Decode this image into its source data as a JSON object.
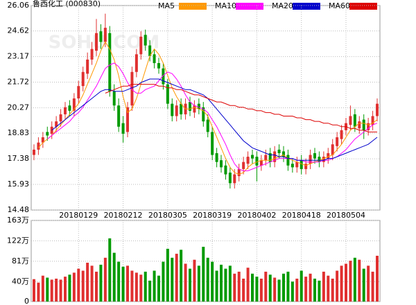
{
  "chart_data": {
    "type": "candlestick",
    "title": "鲁西化工 (000830)",
    "watermark": "SOHU.COM",
    "categories": [
      null,
      null,
      null,
      null,
      null,
      null,
      null,
      null,
      null,
      null,
      "20180129",
      null,
      null,
      null,
      null,
      null,
      null,
      null,
      null,
      null,
      "20180212",
      null,
      null,
      null,
      null,
      null,
      null,
      null,
      null,
      null,
      "20180305",
      null,
      null,
      null,
      null,
      null,
      null,
      null,
      null,
      null,
      "20180319",
      null,
      null,
      null,
      null,
      null,
      null,
      null,
      null,
      null,
      "20180402",
      null,
      null,
      null,
      null,
      null,
      null,
      null,
      null,
      null,
      "20180418",
      null,
      null,
      null,
      null,
      null,
      null,
      null,
      null,
      null,
      "20180504",
      null,
      null,
      null,
      null,
      null,
      null,
      null
    ],
    "ohlc": [
      [
        17.6,
        18.2,
        17.3,
        17.9
      ],
      [
        17.9,
        18.6,
        17.6,
        18.3
      ],
      [
        18.3,
        18.9,
        18.0,
        18.6
      ],
      [
        18.9,
        19.2,
        18.4,
        18.7
      ],
      [
        18.8,
        19.5,
        18.5,
        19.2
      ],
      [
        19.2,
        19.8,
        18.9,
        19.5
      ],
      [
        19.5,
        20.2,
        19.2,
        19.9
      ],
      [
        19.9,
        20.6,
        19.6,
        20.3
      ],
      [
        20.4,
        20.7,
        19.8,
        20.1
      ],
      [
        20.1,
        21.1,
        19.8,
        20.8
      ],
      [
        20.8,
        21.8,
        20.5,
        21.5
      ],
      [
        21.5,
        22.6,
        21.2,
        22.3
      ],
      [
        22.2,
        23.4,
        21.9,
        23.0
      ],
      [
        23.0,
        24.0,
        22.7,
        23.6
      ],
      [
        23.5,
        25.3,
        23.2,
        24.5
      ],
      [
        24.6,
        25.0,
        23.6,
        24.0
      ],
      [
        24.0,
        25.6,
        23.7,
        24.8
      ],
      [
        24.5,
        24.9,
        20.9,
        21.2
      ],
      [
        21.2,
        21.6,
        20.1,
        20.4
      ],
      [
        20.4,
        20.8,
        18.9,
        19.2
      ],
      [
        19.4,
        19.8,
        18.3,
        18.8
      ],
      [
        18.9,
        20.6,
        18.6,
        20.3
      ],
      [
        20.4,
        22.6,
        20.1,
        22.3
      ],
      [
        22.3,
        23.6,
        22.0,
        23.3
      ],
      [
        23.3,
        24.6,
        23.0,
        24.3
      ],
      [
        24.4,
        24.7,
        23.5,
        23.8
      ],
      [
        23.8,
        24.1,
        22.9,
        23.2
      ],
      [
        23.3,
        23.6,
        22.5,
        22.8
      ],
      [
        22.8,
        23.1,
        22.2,
        22.5
      ],
      [
        22.5,
        22.8,
        21.3,
        21.6
      ],
      [
        21.6,
        21.9,
        20.2,
        20.5
      ],
      [
        20.5,
        20.8,
        19.5,
        19.8
      ],
      [
        19.8,
        20.7,
        19.5,
        20.4
      ],
      [
        20.5,
        20.8,
        19.6,
        19.9
      ],
      [
        19.9,
        20.8,
        19.6,
        20.5
      ],
      [
        20.6,
        20.9,
        19.8,
        20.1
      ],
      [
        20.0,
        20.7,
        19.7,
        20.4
      ],
      [
        20.5,
        20.8,
        19.9,
        20.2
      ],
      [
        20.3,
        20.6,
        19.2,
        19.5
      ],
      [
        19.6,
        19.9,
        18.6,
        18.9
      ],
      [
        18.9,
        19.2,
        17.3,
        17.6
      ],
      [
        17.7,
        18.0,
        16.9,
        17.2
      ],
      [
        17.3,
        17.6,
        16.6,
        16.9
      ],
      [
        17.0,
        17.3,
        16.2,
        16.5
      ],
      [
        16.6,
        16.9,
        15.7,
        16.0
      ],
      [
        16.0,
        16.8,
        15.7,
        16.5
      ],
      [
        16.4,
        17.1,
        16.1,
        16.8
      ],
      [
        16.8,
        17.5,
        16.5,
        17.2
      ],
      [
        17.1,
        17.8,
        16.8,
        17.5
      ],
      [
        17.6,
        17.9,
        17.1,
        17.4
      ],
      [
        17.5,
        17.8,
        16.1,
        17.0
      ],
      [
        17.0,
        17.6,
        16.7,
        17.3
      ],
      [
        17.3,
        17.9,
        17.0,
        17.6
      ],
      [
        17.7,
        18.0,
        16.9,
        17.2
      ],
      [
        17.2,
        18.1,
        16.9,
        17.8
      ],
      [
        17.9,
        18.2,
        17.4,
        17.7
      ],
      [
        17.8,
        18.1,
        17.2,
        17.5
      ],
      [
        17.6,
        17.9,
        16.7,
        17.0
      ],
      [
        17.1,
        17.4,
        16.6,
        16.9
      ],
      [
        16.9,
        17.5,
        16.6,
        17.2
      ],
      [
        17.3,
        17.6,
        16.5,
        16.8
      ],
      [
        16.8,
        17.4,
        16.5,
        17.1
      ],
      [
        17.1,
        17.9,
        16.8,
        17.6
      ],
      [
        17.7,
        18.0,
        17.1,
        17.4
      ],
      [
        17.5,
        17.8,
        16.9,
        17.2
      ],
      [
        17.2,
        17.8,
        16.9,
        17.5
      ],
      [
        17.4,
        18.0,
        17.1,
        17.7
      ],
      [
        17.6,
        18.5,
        17.3,
        18.2
      ],
      [
        18.1,
        18.9,
        17.8,
        18.6
      ],
      [
        18.5,
        19.3,
        18.2,
        19.0
      ],
      [
        19.0,
        19.7,
        18.7,
        19.4
      ],
      [
        19.3,
        20.4,
        19.0,
        19.8
      ],
      [
        19.9,
        20.2,
        18.9,
        19.2
      ],
      [
        19.1,
        19.8,
        18.8,
        19.5
      ],
      [
        19.6,
        19.9,
        18.5,
        19.0
      ],
      [
        19.0,
        19.7,
        18.7,
        19.4
      ],
      [
        19.3,
        20.1,
        19.0,
        19.8
      ],
      [
        19.8,
        20.8,
        19.5,
        20.5
      ]
    ],
    "volume": [
      45,
      38,
      52,
      48,
      44,
      46,
      44,
      50,
      54,
      58,
      66,
      62,
      78,
      72,
      60,
      74,
      88,
      127,
      98,
      80,
      70,
      72,
      62,
      58,
      54,
      60,
      42,
      62,
      52,
      80,
      106,
      88,
      96,
      104,
      76,
      66,
      84,
      72,
      110,
      88,
      80,
      62,
      74,
      66,
      72,
      56,
      60,
      46,
      68,
      56,
      50,
      46,
      60,
      54,
      48,
      44,
      56,
      60,
      40,
      46,
      62,
      50,
      56,
      46,
      42,
      60,
      52,
      46,
      62,
      72,
      76,
      82,
      88,
      84,
      66,
      72,
      60,
      92
    ],
    "series": [
      {
        "name": "MA5",
        "color": "#ff9900",
        "values": [
          null,
          18.0,
          18.3,
          18.5,
          18.7,
          19.0,
          19.3,
          19.6,
          19.9,
          20.2,
          20.5,
          21.0,
          21.6,
          22.2,
          22.8,
          23.5,
          24.0,
          23.6,
          23.0,
          22.1,
          20.9,
          20.0,
          20.2,
          20.8,
          21.6,
          22.4,
          23.2,
          23.6,
          23.3,
          22.8,
          22.1,
          21.4,
          20.9,
          20.5,
          20.2,
          20.2,
          20.3,
          20.2,
          20.1,
          19.8,
          19.2,
          18.6,
          18.0,
          17.4,
          16.9,
          16.6,
          16.5,
          16.6,
          16.9,
          17.1,
          17.2,
          17.3,
          17.3,
          17.3,
          17.4,
          17.5,
          17.6,
          17.4,
          17.3,
          17.2,
          17.1,
          17.0,
          17.1,
          17.2,
          17.3,
          17.4,
          17.5,
          17.6,
          17.9,
          18.2,
          18.6,
          19.0,
          19.2,
          19.4,
          19.4,
          19.3,
          19.4,
          19.6
        ]
      },
      {
        "name": "MA10",
        "color": "#ff00ff",
        "values": [
          null,
          null,
          null,
          18.5,
          18.7,
          18.9,
          19.1,
          19.3,
          19.5,
          19.8,
          20.0,
          20.3,
          20.7,
          21.1,
          21.5,
          22.0,
          22.5,
          22.7,
          22.8,
          22.6,
          22.2,
          21.7,
          21.3,
          21.1,
          21.1,
          21.3,
          21.4,
          21.5,
          21.8,
          22.1,
          22.3,
          22.2,
          21.9,
          21.5,
          21.0,
          20.6,
          20.4,
          20.3,
          20.2,
          20.0,
          19.6,
          19.2,
          18.7,
          18.2,
          17.6,
          17.1,
          16.8,
          16.7,
          16.7,
          16.8,
          16.9,
          17.0,
          17.1,
          17.2,
          17.3,
          17.4,
          17.4,
          17.4,
          17.4,
          17.3,
          17.3,
          17.2,
          17.2,
          17.2,
          17.2,
          17.3,
          17.3,
          17.4,
          17.5,
          17.7,
          17.9,
          18.2,
          18.5,
          18.7,
          18.9,
          19.1,
          19.3,
          19.4
        ]
      },
      {
        "name": "MA20",
        "color": "#0000cc",
        "values": [
          null,
          null,
          null,
          null,
          19.0,
          19.2,
          19.4,
          19.6,
          19.8,
          20.0,
          20.2,
          20.4,
          20.6,
          20.8,
          21.0,
          21.2,
          21.3,
          21.3,
          21.2,
          21.2,
          21.2,
          21.3,
          21.4,
          21.5,
          21.7,
          21.8,
          21.9,
          21.9,
          21.9,
          21.8,
          21.7,
          21.6,
          21.5,
          21.4,
          21.3,
          21.3,
          21.2,
          21.1,
          21.0,
          20.8,
          20.5,
          20.2,
          19.9,
          19.6,
          19.3,
          19.0,
          18.7,
          18.4,
          18.2,
          18.0,
          17.9,
          17.8,
          17.7,
          17.6,
          17.6,
          17.5,
          17.5,
          17.4,
          17.4,
          17.3,
          17.3,
          17.3,
          17.3,
          17.3,
          17.3,
          17.3,
          17.4,
          17.4,
          17.5,
          17.6,
          17.7,
          17.8,
          17.9,
          18.0,
          18.1,
          18.2,
          18.4,
          18.6
        ]
      },
      {
        "name": "MA60",
        "color": "#dd0000",
        "values": [
          null,
          null,
          null,
          null,
          null,
          null,
          null,
          null,
          null,
          null,
          null,
          null,
          null,
          null,
          null,
          null,
          21.1,
          21.2,
          21.3,
          21.4,
          21.5,
          21.5,
          21.6,
          21.6,
          21.6,
          21.6,
          21.6,
          21.6,
          21.5,
          21.5,
          21.4,
          21.4,
          21.3,
          21.3,
          21.2,
          21.1,
          21.0,
          21.0,
          20.9,
          20.8,
          20.7,
          20.6,
          20.6,
          20.5,
          20.4,
          20.4,
          20.3,
          20.3,
          20.2,
          20.2,
          20.1,
          20.1,
          20.0,
          20.0,
          19.9,
          19.9,
          19.8,
          19.8,
          19.8,
          19.7,
          19.7,
          19.6,
          19.6,
          19.5,
          19.5,
          19.4,
          19.4,
          19.3,
          19.3,
          19.2,
          19.2,
          19.1,
          19.1,
          19.0,
          19.0,
          18.9,
          18.9,
          18.9
        ]
      }
    ],
    "up_color": "#e03030",
    "down_color": "#009a00",
    "ylim": [
      14.48,
      26.06
    ],
    "yticks": [
      14.48,
      15.93,
      17.38,
      18.83,
      20.27,
      21.72,
      23.17,
      24.62,
      26.06
    ],
    "y2lim": [
      0,
      163
    ],
    "y2ticks": [
      0,
      {
        "value": 40,
        "label": "40万"
      },
      {
        "value": 81,
        "label": "81万"
      },
      {
        "value": 122,
        "label": "122万"
      },
      {
        "value": 163,
        "label": "163万"
      }
    ],
    "grid": true
  }
}
